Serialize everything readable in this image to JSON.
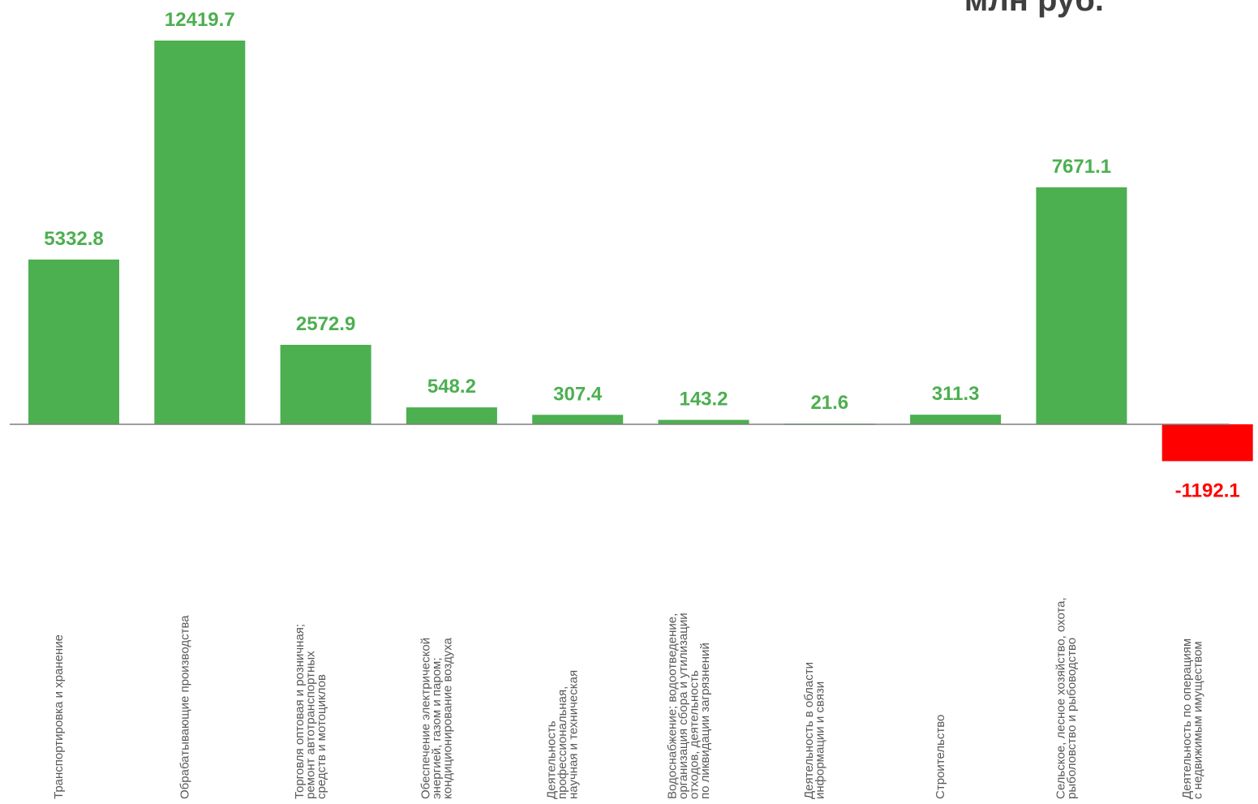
{
  "unit_label": "млн руб.",
  "chart_data": {
    "type": "bar",
    "title": "",
    "xlabel": "",
    "ylabel": "",
    "categories": [
      "Транспортировка и хранение",
      "Обрабатывающие производства",
      "Торговля оптовая и розничная; ремонт автотранспортных средств и мотоциклов",
      "Обеспечение электрической энергией, газом и паром; кондиционирование воздуха",
      "Деятельность профессиональная, научная и техническая",
      "Водоснабжение; водоотведение, организация сбора и утилизации отходов, деятельность по ликвидации загрязнений",
      "Деятельность в области информации и связи",
      "Строительство",
      "Сельское, лесное хозяйство, охота, рыболовство и рыбоводство",
      "Деятельность по операциям с недвижимым имуществом"
    ],
    "category_lines": [
      [
        "Транспортировка и хранение"
      ],
      [
        "Обрабатывающие производства"
      ],
      [
        "Торговля оптовая и розничная;",
        "ремонт автотранспортных",
        "средств и мотоциклов"
      ],
      [
        "Обеспечение электрической",
        "энергией, газом и паром;",
        "кондиционирование воздуха"
      ],
      [
        "Деятельность",
        "профессиональная,",
        "научная и техническая"
      ],
      [
        "Водоснабжение; водоотведение,",
        "организация сбора и утилизации",
        "отходов, деятельность",
        "по ликвидации загрязнений"
      ],
      [
        "Деятельность в области",
        "информации и связи"
      ],
      [
        "Строительство"
      ],
      [
        "Сельское, лесное хозяйство, охота,",
        "рыболовство и рыбоводство"
      ],
      [
        "Деятельность по операциям",
        "с недвижимым имуществом"
      ]
    ],
    "values": [
      5332.8,
      12419.7,
      2572.9,
      548.2,
      307.4,
      143.2,
      21.6,
      311.3,
      7671.1,
      -1192.1
    ],
    "value_labels": [
      "5332.8",
      "12419.7",
      "2572.9",
      "548.2",
      "307.4",
      "143.2",
      "21.6",
      "311.3",
      "7671.1",
      "-1192.1"
    ],
    "ylim": [
      -1192.1,
      12419.7
    ],
    "grid": false,
    "legend": "none",
    "colors": {
      "positive": "#4caf50",
      "negative": "#ff0000",
      "axis": "#7f7f7f",
      "category_text": "#595959"
    }
  }
}
